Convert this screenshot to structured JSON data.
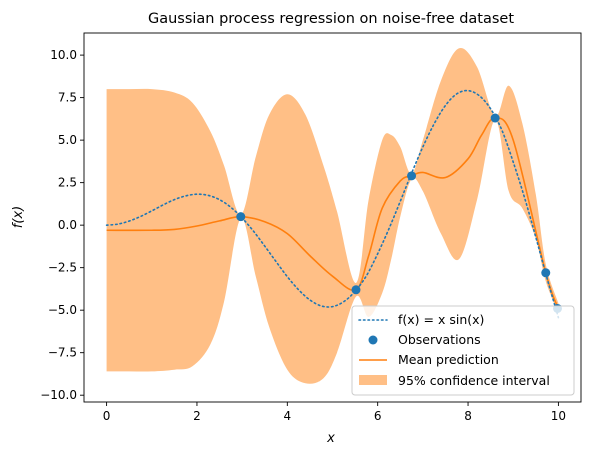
{
  "chart_data": {
    "type": "line",
    "title": "Gaussian process regression on noise-free dataset",
    "xlabel": "x",
    "ylabel": "f(x)",
    "xlim": [
      -0.5,
      10.5
    ],
    "ylim": [
      -10.4,
      11.3
    ],
    "xticks": [
      0,
      2,
      4,
      6,
      8,
      10
    ],
    "xtick_labels": [
      "0",
      "2",
      "4",
      "6",
      "8",
      "10"
    ],
    "yticks": [
      -10,
      -7.5,
      -5,
      -2.5,
      0,
      2.5,
      5,
      7.5,
      10
    ],
    "ytick_labels": [
      "−10.0",
      "−7.5",
      "−5.0",
      "−2.5",
      "0.0",
      "2.5",
      "5.0",
      "7.5",
      "10.0"
    ],
    "grid": false,
    "legend_position": "lower-right",
    "colors": {
      "true_function": "#1f77b4",
      "observations": "#1f77b4",
      "mean_prediction": "#ff7f0e",
      "confidence": "#ffbf86"
    },
    "legend": [
      {
        "key": "true_function",
        "label": "f(x) = x sin(x)"
      },
      {
        "key": "observations",
        "label": "Observations"
      },
      {
        "key": "mean_prediction",
        "label": "Mean prediction"
      },
      {
        "key": "confidence",
        "label": "95% confidence interval"
      }
    ],
    "series": {
      "true_function": {
        "style": "dotted",
        "x": [
          0,
          0.25,
          0.5,
          0.75,
          1,
          1.25,
          1.5,
          1.75,
          2,
          2.25,
          2.5,
          2.75,
          3,
          3.25,
          3.5,
          3.75,
          4,
          4.25,
          4.5,
          4.75,
          5,
          5.25,
          5.5,
          5.75,
          6,
          6.25,
          6.5,
          6.75,
          7,
          7.25,
          7.5,
          7.75,
          8,
          8.25,
          8.5,
          8.75,
          9,
          9.25,
          9.5,
          9.75,
          10
        ],
        "y": [
          0,
          0.06,
          0.24,
          0.51,
          0.84,
          1.19,
          1.5,
          1.72,
          1.82,
          1.75,
          1.5,
          1.05,
          0.42,
          -0.35,
          -1.23,
          -2.14,
          -3.03,
          -3.8,
          -4.4,
          -4.75,
          -4.79,
          -4.5,
          -3.89,
          -2.98,
          -1.68,
          -0.21,
          1.4,
          3.05,
          4.6,
          5.96,
          7.04,
          7.72,
          7.91,
          7.61,
          6.84,
          5.58,
          3.71,
          1.62,
          -0.71,
          -3.14,
          -5.44
        ]
      },
      "observations": {
        "x": [
          2.97,
          5.52,
          6.75,
          8.6,
          9.72,
          9.98
        ],
        "y": [
          0.5,
          -3.8,
          2.9,
          6.3,
          -2.8,
          -4.9
        ]
      },
      "mean_prediction": {
        "x": [
          0,
          1,
          1.5,
          2,
          2.5,
          2.97,
          3.5,
          4,
          4.5,
          5,
          5.52,
          5.8,
          6.1,
          6.5,
          6.75,
          7,
          7.5,
          8,
          8.3,
          8.6,
          9,
          9.72,
          10
        ],
        "y": [
          -0.3,
          -0.3,
          -0.25,
          -0.05,
          0.25,
          0.5,
          0.2,
          -0.5,
          -1.8,
          -3.0,
          -3.8,
          -1.8,
          1.0,
          2.6,
          2.9,
          3.1,
          2.8,
          3.9,
          5.3,
          6.3,
          5.0,
          -2.8,
          -4.9
        ]
      },
      "confidence": {
        "x": [
          0,
          0.5,
          1,
          1.5,
          1.9,
          2.3,
          2.6,
          2.97,
          3.3,
          3.6,
          4,
          4.4,
          4.8,
          5.1,
          5.52,
          5.8,
          6.1,
          6.3,
          6.5,
          6.75,
          7,
          7.4,
          7.8,
          8.2,
          8.6,
          8.9,
          9.2,
          9.5,
          9.72,
          10
        ],
        "upper": [
          8.0,
          8.0,
          8.0,
          7.8,
          7.2,
          5.5,
          3.5,
          0.6,
          4.0,
          6.5,
          7.7,
          6.5,
          3.5,
          0.8,
          -3.4,
          1.5,
          5.0,
          5.3,
          4.6,
          3.0,
          5.0,
          8.5,
          10.4,
          9.3,
          6.4,
          8.2,
          6.0,
          1.8,
          -2.3,
          -4.6
        ],
        "lower": [
          -8.6,
          -8.6,
          -8.6,
          -8.5,
          -8.3,
          -7.0,
          -4.5,
          0.4,
          -3.0,
          -6.0,
          -8.5,
          -9.3,
          -9.0,
          -7.5,
          -4.2,
          -5.4,
          -4.0,
          -2.0,
          0.5,
          2.7,
          2.0,
          -0.5,
          -2.0,
          1.5,
          6.2,
          2.0,
          1.0,
          -0.8,
          -3.3,
          -5.2
        ]
      }
    }
  }
}
